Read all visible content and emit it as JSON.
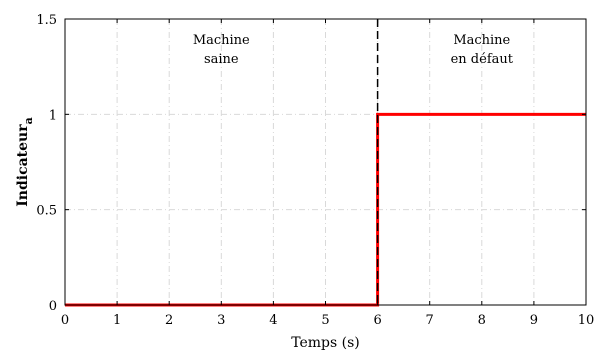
{
  "chart_data": {
    "type": "line",
    "xlabel": "Temps (s)",
    "ylabel_main": "Indicateur",
    "ylabel_sub": "a",
    "xlim": [
      0,
      10
    ],
    "ylim": [
      0,
      1.5
    ],
    "x_ticks": [
      0,
      1,
      2,
      3,
      4,
      5,
      6,
      7,
      8,
      9,
      10
    ],
    "y_ticks": [
      0,
      0.5,
      1,
      1.5
    ],
    "y_tick_labels": [
      "0",
      "0.5",
      "1",
      "1.5"
    ],
    "grid": true,
    "series": [
      {
        "color": "#ff0000",
        "x": [
          0,
          6,
          6,
          10
        ],
        "y": [
          0,
          0,
          1,
          1
        ]
      }
    ],
    "vline": {
      "x": 6,
      "style": "dashed",
      "color": "#000000"
    },
    "annotations": [
      {
        "lines": [
          "Machine",
          "saine"
        ],
        "x": 3,
        "y": 1.3
      },
      {
        "lines": [
          "Machine",
          "en défaut"
        ],
        "x": 8,
        "y": 1.3
      }
    ]
  }
}
